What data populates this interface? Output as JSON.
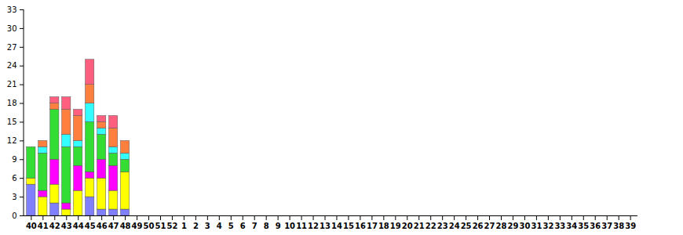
{
  "chart_data": {
    "type": "bar",
    "stacked": true,
    "grid": false,
    "categories": [
      "40",
      "41",
      "42",
      "43",
      "44",
      "45",
      "46",
      "47",
      "48",
      "49",
      "50",
      "51",
      "52",
      "1",
      "2",
      "3",
      "4",
      "5",
      "6",
      "7",
      "8",
      "9",
      "10",
      "11",
      "12",
      "13",
      "14",
      "15",
      "16",
      "17",
      "18",
      "19",
      "20",
      "21",
      "22",
      "23",
      "24",
      "25",
      "26",
      "27",
      "28",
      "29",
      "30",
      "31",
      "32",
      "33",
      "34",
      "35",
      "36",
      "37",
      "38",
      "39"
    ],
    "ylim": [
      0,
      33
    ],
    "yticks": [
      0,
      3,
      6,
      9,
      12,
      15,
      18,
      21,
      24,
      27,
      30,
      33
    ],
    "series": [
      {
        "color": "#8080ff",
        "values": [
          5,
          0,
          2,
          0,
          0,
          3,
          1,
          1,
          1,
          null,
          null,
          null,
          null,
          null,
          null,
          null,
          null,
          null,
          null,
          null,
          null,
          null,
          null,
          null,
          null,
          null,
          null,
          null,
          null,
          null,
          null,
          null,
          null,
          null,
          null,
          null,
          null,
          null,
          null,
          null,
          null,
          null,
          null,
          null,
          null,
          null,
          null,
          null,
          null,
          null,
          null,
          null
        ]
      },
      {
        "color": "#ffff00",
        "values": [
          1,
          3,
          3,
          1,
          4,
          3,
          5,
          3,
          6,
          null,
          null,
          null,
          null,
          null,
          null,
          null,
          null,
          null,
          null,
          null,
          null,
          null,
          null,
          null,
          null,
          null,
          null,
          null,
          null,
          null,
          null,
          null,
          null,
          null,
          null,
          null,
          null,
          null,
          null,
          null,
          null,
          null,
          null,
          null,
          null,
          null,
          null,
          null,
          null,
          null,
          null,
          null
        ]
      },
      {
        "color": "#ff00ff",
        "values": [
          0,
          1,
          4,
          1,
          4,
          1,
          3,
          4,
          0,
          null,
          null,
          null,
          null,
          null,
          null,
          null,
          null,
          null,
          null,
          null,
          null,
          null,
          null,
          null,
          null,
          null,
          null,
          null,
          null,
          null,
          null,
          null,
          null,
          null,
          null,
          null,
          null,
          null,
          null,
          null,
          null,
          null,
          null,
          null,
          null,
          null,
          null,
          null,
          null,
          null,
          null,
          null
        ]
      },
      {
        "color": "#33dd33",
        "values": [
          5,
          6,
          8,
          9,
          3,
          8,
          4,
          2,
          2,
          null,
          null,
          null,
          null,
          null,
          null,
          null,
          null,
          null,
          null,
          null,
          null,
          null,
          null,
          null,
          null,
          null,
          null,
          null,
          null,
          null,
          null,
          null,
          null,
          null,
          null,
          null,
          null,
          null,
          null,
          null,
          null,
          null,
          null,
          null,
          null,
          null,
          null,
          null,
          null,
          null,
          null,
          null
        ]
      },
      {
        "color": "#33ffff",
        "values": [
          0,
          1,
          0,
          2,
          1,
          3,
          1,
          1,
          1,
          null,
          null,
          null,
          null,
          null,
          null,
          null,
          null,
          null,
          null,
          null,
          null,
          null,
          null,
          null,
          null,
          null,
          null,
          null,
          null,
          null,
          null,
          null,
          null,
          null,
          null,
          null,
          null,
          null,
          null,
          null,
          null,
          null,
          null,
          null,
          null,
          null,
          null,
          null,
          null,
          null,
          null,
          null
        ]
      },
      {
        "color": "#ff7f3f",
        "values": [
          0,
          1,
          1,
          4,
          4,
          3,
          1,
          3,
          2,
          null,
          null,
          null,
          null,
          null,
          null,
          null,
          null,
          null,
          null,
          null,
          null,
          null,
          null,
          null,
          null,
          null,
          null,
          null,
          null,
          null,
          null,
          null,
          null,
          null,
          null,
          null,
          null,
          null,
          null,
          null,
          null,
          null,
          null,
          null,
          null,
          null,
          null,
          null,
          null,
          null,
          null,
          null
        ]
      },
      {
        "color": "#ff5f7f",
        "values": [
          0,
          0,
          1,
          2,
          1,
          4,
          1,
          2,
          0,
          null,
          null,
          null,
          null,
          null,
          null,
          null,
          null,
          null,
          null,
          null,
          null,
          null,
          null,
          null,
          null,
          null,
          null,
          null,
          null,
          null,
          null,
          null,
          null,
          null,
          null,
          null,
          null,
          null,
          null,
          null,
          null,
          null,
          null,
          null,
          null,
          null,
          null,
          null,
          null,
          null,
          null,
          null
        ]
      }
    ]
  }
}
